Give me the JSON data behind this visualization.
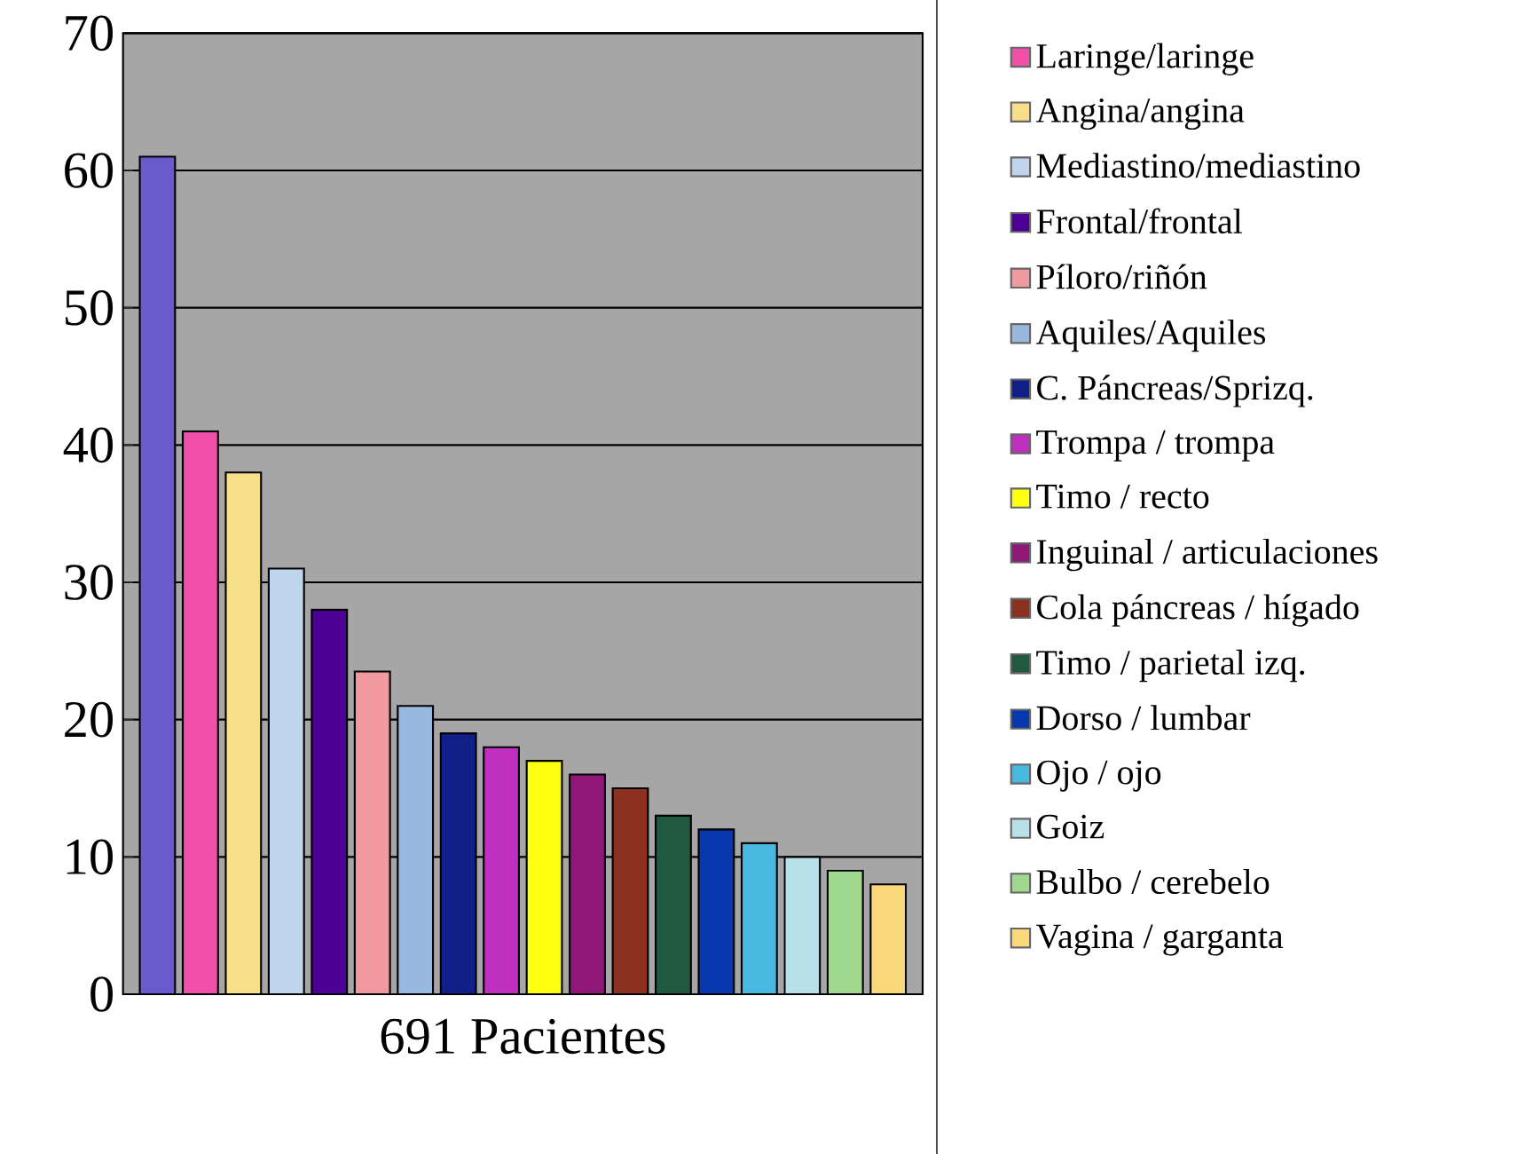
{
  "chart_data": {
    "type": "bar",
    "xlabel": "691 Pacientes",
    "categories": [
      null,
      null,
      null,
      null,
      null,
      null,
      null,
      null,
      null,
      null,
      null,
      null,
      null,
      null,
      null,
      null,
      null,
      null
    ],
    "series": [
      {
        "color": "#6a5acd",
        "values": [
          61,
          null,
          null,
          null,
          null,
          null,
          null,
          null,
          null,
          null,
          null,
          null,
          null,
          null,
          null,
          null,
          null,
          null
        ]
      },
      {
        "name": "Laringe/laringe",
        "color": "#f050a8",
        "values": [
          null,
          41,
          null,
          null,
          null,
          null,
          null,
          null,
          null,
          null,
          null,
          null,
          null,
          null,
          null,
          null,
          null,
          null
        ]
      },
      {
        "name": "Angina/angina",
        "color": "#f8de88",
        "values": [
          null,
          null,
          38,
          null,
          null,
          null,
          null,
          null,
          null,
          null,
          null,
          null,
          null,
          null,
          null,
          null,
          null,
          null
        ]
      },
      {
        "name": "Mediastino/mediastino",
        "color": "#c0d4ec",
        "values": [
          null,
          null,
          null,
          31,
          null,
          null,
          null,
          null,
          null,
          null,
          null,
          null,
          null,
          null,
          null,
          null,
          null,
          null
        ]
      },
      {
        "name": "Frontal/frontal",
        "color": "#4c0096",
        "values": [
          null,
          null,
          null,
          null,
          28,
          null,
          null,
          null,
          null,
          null,
          null,
          null,
          null,
          null,
          null,
          null,
          null,
          null
        ]
      },
      {
        "name": "Píloro/riñón",
        "color": "#f0999e",
        "values": [
          null,
          null,
          null,
          null,
          null,
          23.5,
          null,
          null,
          null,
          null,
          null,
          null,
          null,
          null,
          null,
          null,
          null,
          null
        ]
      },
      {
        "name": "Aquiles/Aquiles",
        "color": "#98b8e0",
        "values": [
          null,
          null,
          null,
          null,
          null,
          null,
          21,
          null,
          null,
          null,
          null,
          null,
          null,
          null,
          null,
          null,
          null,
          null
        ]
      },
      {
        "name": "C. Páncreas/Sprizq.",
        "color": "#102088",
        "values": [
          null,
          null,
          null,
          null,
          null,
          null,
          null,
          19,
          null,
          null,
          null,
          null,
          null,
          null,
          null,
          null,
          null,
          null
        ]
      },
      {
        "name": "Trompa / trompa",
        "color": "#c030c0",
        "values": [
          null,
          null,
          null,
          null,
          null,
          null,
          null,
          null,
          18,
          null,
          null,
          null,
          null,
          null,
          null,
          null,
          null,
          null
        ]
      },
      {
        "name": "Timo / recto",
        "color": "#ffff10",
        "values": [
          null,
          null,
          null,
          null,
          null,
          null,
          null,
          null,
          null,
          17,
          null,
          null,
          null,
          null,
          null,
          null,
          null,
          null
        ]
      },
      {
        "name": "Inguinal / articulaciones",
        "color": "#901878",
        "values": [
          null,
          null,
          null,
          null,
          null,
          null,
          null,
          null,
          null,
          null,
          16,
          null,
          null,
          null,
          null,
          null,
          null,
          null
        ]
      },
      {
        "name": "Cola páncreas / hígado",
        "color": "#8c3020",
        "values": [
          null,
          null,
          null,
          null,
          null,
          null,
          null,
          null,
          null,
          null,
          null,
          15,
          null,
          null,
          null,
          null,
          null,
          null
        ]
      },
      {
        "name": "Timo / parietal izq.",
        "color": "#205840",
        "values": [
          null,
          null,
          null,
          null,
          null,
          null,
          null,
          null,
          null,
          null,
          null,
          null,
          13,
          null,
          null,
          null,
          null,
          null
        ]
      },
      {
        "name": "Dorso / lumbar",
        "color": "#0838b0",
        "values": [
          null,
          null,
          null,
          null,
          null,
          null,
          null,
          null,
          null,
          null,
          null,
          null,
          null,
          12,
          null,
          null,
          null,
          null
        ]
      },
      {
        "name": "Ojo / ojo",
        "color": "#48b8e0",
        "values": [
          null,
          null,
          null,
          null,
          null,
          null,
          null,
          null,
          null,
          null,
          null,
          null,
          null,
          null,
          11,
          null,
          null,
          null
        ]
      },
      {
        "name": "Goiz",
        "color": "#b8e0e8",
        "values": [
          null,
          null,
          null,
          null,
          null,
          null,
          null,
          null,
          null,
          null,
          null,
          null,
          null,
          null,
          null,
          10,
          null,
          null
        ]
      },
      {
        "name": "Bulbo / cerebelo",
        "color": "#a0d890",
        "values": [
          null,
          null,
          null,
          null,
          null,
          null,
          null,
          null,
          null,
          null,
          null,
          null,
          null,
          null,
          null,
          null,
          9,
          null
        ]
      },
      {
        "name": "Vagina / garganta",
        "color": "#f8d878",
        "values": [
          null,
          null,
          null,
          null,
          null,
          null,
          null,
          null,
          null,
          null,
          null,
          null,
          null,
          null,
          null,
          null,
          null,
          8
        ]
      }
    ],
    "ylim": [
      0,
      70
    ],
    "yticks": [
      0,
      10,
      20,
      30,
      40,
      50,
      60,
      70
    ],
    "grid": "y",
    "legend": "right"
  }
}
